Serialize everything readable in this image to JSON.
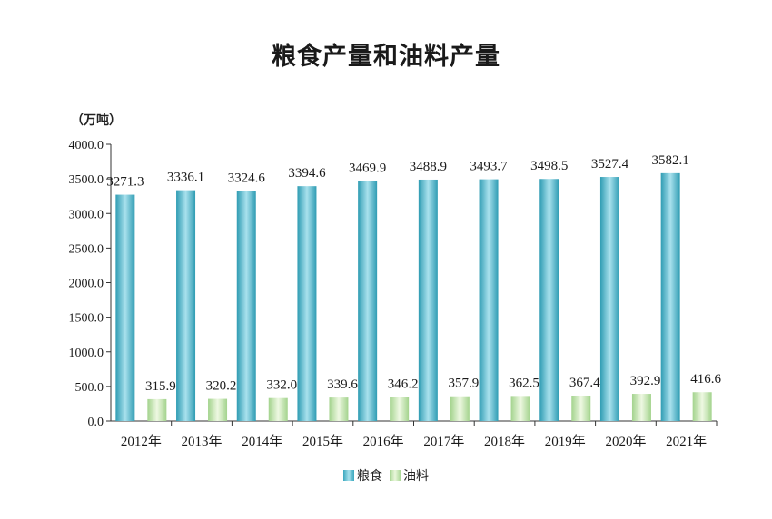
{
  "chart_data": {
    "type": "bar",
    "title": "粮食产量和油料产量",
    "unit_label": "（万吨）",
    "categories": [
      "2012年",
      "2013年",
      "2014年",
      "2015年",
      "2016年",
      "2017年",
      "2018年",
      "2019年",
      "2020年",
      "2021年"
    ],
    "series": [
      {
        "name": "粮食",
        "values": [
          3271.3,
          3336.1,
          3324.6,
          3394.6,
          3469.9,
          3488.9,
          3493.7,
          3498.5,
          3527.4,
          3582.1
        ],
        "labels": [
          "3271.3",
          "3336.1",
          "3324.6",
          "3394.6",
          "3469.9",
          "3488.9",
          "3493.7",
          "3498.5",
          "3527.4",
          "3582.1"
        ],
        "color": "#3aa8be"
      },
      {
        "name": "油料",
        "values": [
          315.9,
          320.2,
          332.0,
          339.6,
          346.2,
          357.9,
          362.5,
          367.4,
          392.9,
          416.6
        ],
        "labels": [
          "315.9",
          "320.2",
          "332.0",
          "339.6",
          "346.2",
          "357.9",
          "362.5",
          "367.4",
          "392.9",
          "416.6"
        ],
        "color": "#b6dca2"
      }
    ],
    "y_ticks": [
      "0.0",
      "500.0",
      "1000.0",
      "1500.0",
      "2000.0",
      "2500.0",
      "3000.0",
      "3500.0",
      "4000.0"
    ],
    "ylim": [
      0,
      4000
    ],
    "grid": false,
    "legend_position": "bottom"
  }
}
